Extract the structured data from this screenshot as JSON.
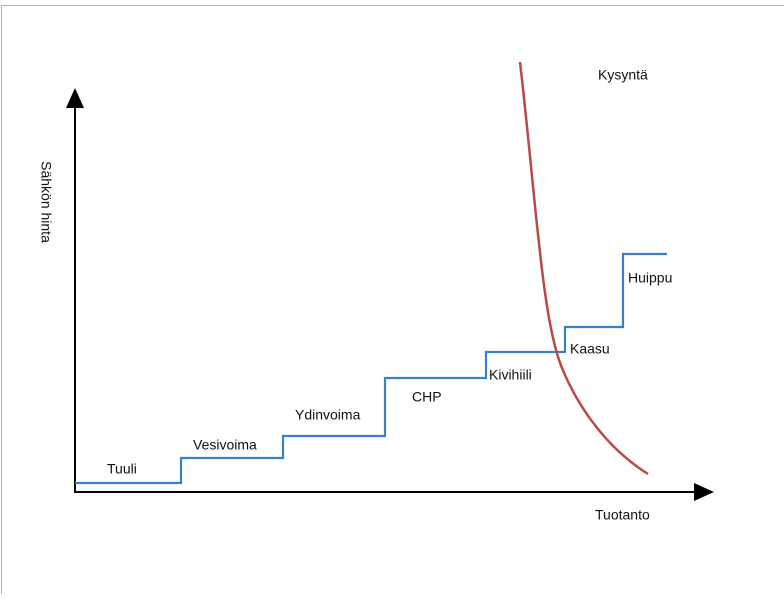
{
  "diagram": {
    "y_axis_label": "Sähkön hinta",
    "x_axis_label": "Tuotanto",
    "demand_label": "Kysyntä",
    "steps": [
      "Tuuli",
      "Vesivoima",
      "Ydinvoima",
      "CHP",
      "Kivihiili",
      "Kaasu",
      "Huippu"
    ]
  }
}
